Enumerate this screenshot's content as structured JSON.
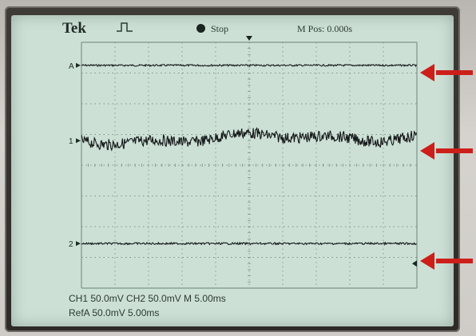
{
  "brand": "Tek",
  "status": "Stop",
  "horizontal_position": "M Pos: 0.000s",
  "trigger_icon": "pulse-trigger-icon",
  "run_state_icon": "filled-circle-icon",
  "channel_markers": {
    "ref_a": "A",
    "ch1": "1",
    "ch2": "2"
  },
  "footer": {
    "line1": "CH1  50.0mV   CH2  50.0mV    M 5.00ms",
    "line2": "RefA 50.0mV 5.00ms"
  },
  "colors": {
    "screen": "#cde0d6",
    "grid": "#7d958a",
    "trace": "#15191a",
    "arrow": "#cc1f1a"
  }
}
